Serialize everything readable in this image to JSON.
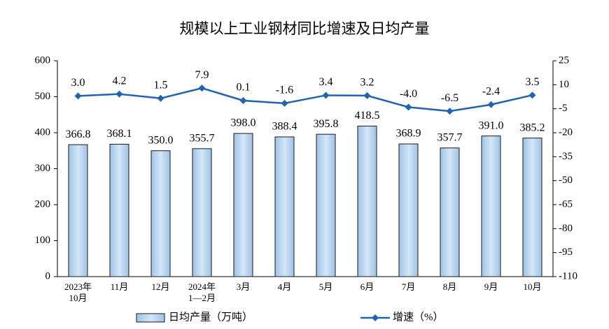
{
  "chart_data": {
    "type": "bar-line",
    "title": "规模以上工业钢材同比增速及日均产量",
    "categories": [
      "2023年\n10月",
      "11月",
      "12月",
      "2024年\n1—2月",
      "3月",
      "4月",
      "5月",
      "6月",
      "7月",
      "8月",
      "9月",
      "10月"
    ],
    "series": [
      {
        "name": "日均产量（万吨）",
        "type": "bar",
        "color": "#9dc3e6",
        "values": [
          366.8,
          368.1,
          350.0,
          355.7,
          398.0,
          388.4,
          395.8,
          418.5,
          368.9,
          357.7,
          391.0,
          385.2
        ],
        "value_labels": [
          "366.8",
          "368.1",
          "350.0",
          "355.7",
          "398.0",
          "388.4",
          "395.8",
          "418.5",
          "368.9",
          "357.7",
          "391.0",
          "385.2"
        ]
      },
      {
        "name": "增速（%）",
        "type": "line",
        "axis": "y2",
        "color": "#1f64b0",
        "values": [
          3.0,
          4.2,
          1.5,
          7.9,
          0.1,
          -1.6,
          3.4,
          3.2,
          -4.0,
          -6.5,
          -2.4,
          3.5
        ],
        "value_labels": [
          "3.0",
          "4.2",
          "1.5",
          "7.9",
          "0.1",
          "-1.6",
          "3.4",
          "3.2",
          "-4.0",
          "-6.5",
          "-2.4",
          "3.5"
        ]
      }
    ],
    "ylim": [
      0,
      600
    ],
    "yticks": [
      0,
      100,
      200,
      300,
      400,
      500,
      600
    ],
    "y2lim": [
      -110,
      25
    ],
    "y2ticks": [
      -110,
      -95,
      -80,
      -65,
      -50,
      -35,
      -20,
      -5,
      10,
      25
    ]
  }
}
